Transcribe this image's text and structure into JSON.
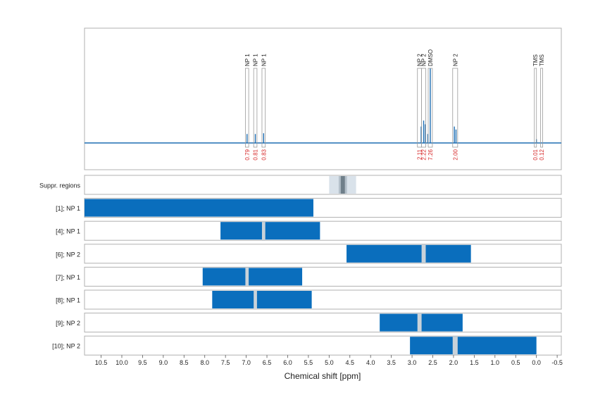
{
  "chart_data": {
    "type": "nmr-spectrum-with-integration-ranges",
    "xlabel": "Chemical shift [ppm]",
    "x_axis": {
      "reversed": true,
      "range": [
        10.9,
        -0.6
      ],
      "ticks": [
        "10.5",
        "10.0",
        "9.5",
        "9.0",
        "8.5",
        "8.0",
        "7.5",
        "7.0",
        "6.5",
        "6.0",
        "5.5",
        "5.0",
        "4.5",
        "4.0",
        "3.5",
        "3.0",
        "2.5",
        "2.0",
        "1.5",
        "1.0",
        "0.5",
        "0.0",
        "-0.5"
      ],
      "tick_values": [
        10.5,
        10.0,
        9.5,
        9.0,
        8.5,
        8.0,
        7.5,
        7.0,
        6.5,
        6.0,
        5.5,
        5.0,
        4.5,
        4.0,
        3.5,
        3.0,
        2.5,
        2.0,
        1.5,
        1.0,
        0.5,
        0.0,
        -0.5
      ]
    },
    "grid": "vertical-dashed",
    "colors": {
      "signal": "#1f6fb4",
      "bar": "#0a6ebd",
      "integral": "#d62728",
      "suppression_outer": "#d9e2ea",
      "suppression_inner": "#6f7f8a",
      "gap": "#c9d2d9"
    },
    "spectrum": {
      "baseline_ppm_range": [
        10.9,
        -0.6
      ],
      "peaks": [
        {
          "ppm": 6.98,
          "height": 0.12
        },
        {
          "ppm": 6.78,
          "height": 0.12
        },
        {
          "ppm": 6.58,
          "height": 0.13
        },
        {
          "ppm": 2.78,
          "height": 0.22
        },
        {
          "ppm": 2.72,
          "height": 0.3
        },
        {
          "ppm": 2.68,
          "height": 0.25
        },
        {
          "ppm": 2.62,
          "height": 0.12
        },
        {
          "ppm": 2.56,
          "height": 1.0
        },
        {
          "ppm": 1.98,
          "height": 0.22
        },
        {
          "ppm": 1.94,
          "height": 0.18
        },
        {
          "ppm": 0.0,
          "height": 0.05
        }
      ]
    },
    "peak_annotations": [
      {
        "label": "NP 1",
        "ppm": 6.98,
        "range": [
          7.02,
          6.94
        ],
        "integral": "0.79"
      },
      {
        "label": "NP 1",
        "ppm": 6.78,
        "range": [
          6.82,
          6.74
        ],
        "integral": "0.81"
      },
      {
        "label": "NP 1",
        "ppm": 6.58,
        "range": [
          6.62,
          6.54
        ],
        "integral": "0.83"
      },
      {
        "label": "NP 2",
        "ppm": 2.82,
        "range": [
          2.87,
          2.77
        ],
        "integral": "2.11"
      },
      {
        "label": "NP 2",
        "ppm": 2.72,
        "range": [
          2.77,
          2.67
        ],
        "integral": "2.22"
      },
      {
        "label": "DMSO",
        "ppm": 2.56,
        "range": [
          2.61,
          2.51
        ],
        "integral": "7.26"
      },
      {
        "label": "NP 2",
        "ppm": 1.96,
        "range": [
          2.02,
          1.9
        ],
        "integral": "2.00"
      },
      {
        "label": "TMS",
        "ppm": 0.03,
        "range": [
          0.05,
          0.01
        ],
        "integral": "0.01"
      },
      {
        "label": "TMS",
        "ppm": -0.12,
        "range": [
          -0.1,
          -0.14
        ],
        "integral": "0.12"
      }
    ],
    "rows": [
      {
        "label": "Suppr. regions",
        "kind": "suppression",
        "outer": [
          5.0,
          4.35
        ],
        "inner": [
          4.77,
          4.57
        ],
        "core": [
          4.72,
          4.62
        ]
      },
      {
        "label": "[1]; NP 1",
        "bar": [
          10.9,
          5.38
        ],
        "gaps": []
      },
      {
        "label": "[4]; NP 1",
        "bar": [
          7.62,
          5.22
        ],
        "gaps": [
          [
            6.62,
            6.54
          ]
        ]
      },
      {
        "label": "[6]; NP 2",
        "bar": [
          4.58,
          1.58
        ],
        "gaps": [
          [
            2.77,
            2.67
          ]
        ]
      },
      {
        "label": "[7]; NP 1",
        "bar": [
          8.05,
          5.65
        ],
        "gaps": [
          [
            7.02,
            6.94
          ]
        ]
      },
      {
        "label": "[8]; NP 1",
        "bar": [
          7.82,
          5.42
        ],
        "gaps": [
          [
            6.82,
            6.74
          ]
        ]
      },
      {
        "label": "[9]; NP 2",
        "bar": [
          3.78,
          1.78
        ],
        "gaps": [
          [
            2.87,
            2.77
          ]
        ]
      },
      {
        "label": "[10]; NP 2",
        "bar": [
          3.05,
          0.0
        ],
        "gaps": [
          [
            2.02,
            1.9
          ]
        ]
      }
    ]
  }
}
